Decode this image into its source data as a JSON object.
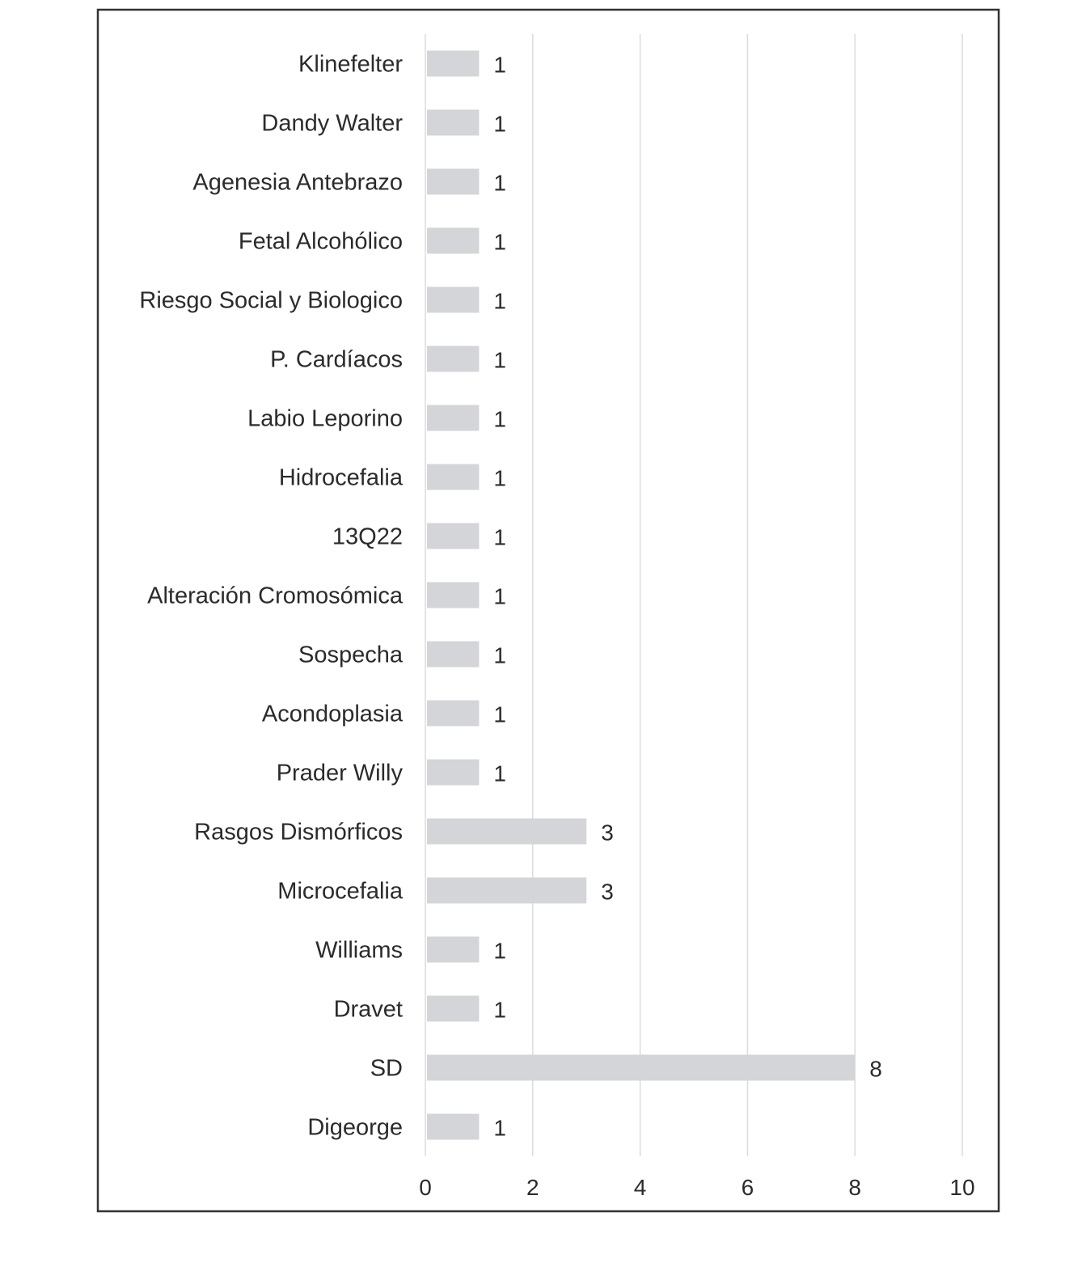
{
  "chart_data": {
    "type": "bar",
    "orientation": "horizontal",
    "title": "",
    "xlabel": "",
    "ylabel": "",
    "categories": [
      "Klinefelter",
      "Dandy Walter",
      "Agenesia Antebrazo",
      "Fetal Alcohólico",
      "Riesgo Social y Biologico",
      "P. Cardíacos",
      "Labio Leporino",
      "Hidrocefalia",
      "13Q22",
      "Alteración Cromosómica",
      "Sospecha",
      "Acondoplasia",
      "Prader Willy",
      "Rasgos Dismórficos",
      "Microcefalia",
      "Williams",
      "Dravet",
      "SD",
      "Digeorge"
    ],
    "values": [
      1,
      1,
      1,
      1,
      1,
      1,
      1,
      1,
      1,
      1,
      1,
      1,
      1,
      3,
      3,
      1,
      1,
      8,
      1
    ],
    "value_labels": [
      "1",
      "1",
      "1",
      "1",
      "1",
      "1",
      "1",
      "1",
      "1",
      "1",
      "1",
      "1",
      "1",
      "3",
      "3",
      "1",
      "1",
      "8",
      "1"
    ],
    "xlim": [
      0,
      10
    ],
    "x_ticks": [
      0,
      2,
      4,
      6,
      8,
      10
    ],
    "x_tick_labels": [
      "0",
      "2",
      "4",
      "6",
      "8",
      "10"
    ],
    "grid": true,
    "legend": "none",
    "colors": {
      "bar": "#d4d5d9",
      "grid": "#dcdcdc",
      "text": "#2b2b2b",
      "frame": "#333333"
    }
  }
}
